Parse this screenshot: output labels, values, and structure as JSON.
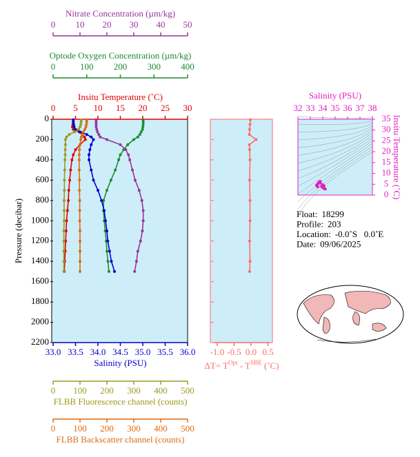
{
  "chart_data": [
    {
      "type": "profile",
      "ylabel": "Pressure (decibar)",
      "ylim": [
        0,
        2200
      ],
      "yticks": [
        0,
        200,
        400,
        600,
        800,
        1000,
        1200,
        1400,
        1600,
        1800,
        2000,
        2200
      ],
      "y": [
        5,
        25,
        50,
        75,
        100,
        125,
        150,
        175,
        200,
        250,
        300,
        350,
        400,
        500,
        600,
        700,
        800,
        900,
        1000,
        1100,
        1200,
        1300,
        1400,
        1500
      ],
      "axes": [
        {
          "label": "Insitu Temperature (˚C)",
          "position": "top",
          "color": "#e00000",
          "xlim": [
            0,
            30
          ],
          "xticks": [
            0,
            5,
            10,
            15,
            20,
            25,
            30
          ],
          "values": [
            4.5,
            4.5,
            4.4,
            4.3,
            4.5,
            5.8,
            6.5,
            7.0,
            7.2,
            6.0,
            5.0,
            4.5,
            4.2,
            3.9,
            3.7,
            3.5,
            3.4,
            3.2,
            3.0,
            2.9,
            2.8,
            2.7,
            2.6,
            2.5
          ]
        },
        {
          "label": "Optode Oxygen Concentration (µm/kg)",
          "position": "top",
          "color": "#1a8c2e",
          "xlim": [
            0,
            400
          ],
          "xticks": [
            0,
            100,
            200,
            300,
            400
          ],
          "values": [
            268,
            268,
            268,
            267,
            266,
            262,
            258,
            252,
            240,
            222,
            210,
            200,
            195,
            185,
            172,
            160,
            150,
            150,
            152,
            155,
            158,
            160,
            163,
            166
          ]
        },
        {
          "label": "Nitrate Concentration (µm/kg)",
          "position": "top",
          "color": "#993399",
          "xlim": [
            0,
            50
          ],
          "xticks": [
            0,
            10,
            20,
            30,
            40,
            50
          ],
          "values": [
            16,
            16,
            16,
            16,
            16.2,
            16.5,
            17,
            17.5,
            20,
            25,
            27,
            28,
            28.5,
            29.5,
            30.5,
            32,
            33,
            33.5,
            33.5,
            33.2,
            32.5,
            31.5,
            31,
            30.3
          ]
        },
        {
          "label": "Salinity (PSU)",
          "position": "bottom",
          "color": "#0000cc",
          "xlim": [
            33,
            36
          ],
          "xticks": [
            {
              "value": 33,
              "label": "33.0"
            },
            33.5,
            {
              "value": 34,
              "label": "34.0"
            },
            34.5,
            {
              "value": 35,
              "label": "35.0"
            },
            35.5,
            {
              "value": 36,
              "label": "36.0"
            }
          ],
          "values": [
            33.45,
            33.45,
            33.46,
            33.47,
            33.5,
            33.6,
            33.75,
            33.85,
            33.9,
            33.85,
            33.82,
            33.8,
            33.8,
            33.85,
            33.9,
            34.0,
            34.08,
            34.14,
            34.17,
            34.2,
            34.22,
            34.26,
            34.3,
            34.37
          ]
        },
        {
          "label": "FLBB Fluorescence channel (counts)",
          "position": "bottom",
          "color": "#9a9a1e",
          "xlim": [
            0,
            500
          ],
          "xticks": [
            0,
            100,
            200,
            300,
            400,
            500
          ],
          "values": [
            105,
            104,
            103,
            100,
            95,
            80,
            60,
            50,
            46,
            46,
            45,
            45,
            44,
            43,
            42,
            42,
            41,
            41,
            41,
            40,
            40,
            40,
            40,
            40
          ]
        },
        {
          "label": "FLBB Backscatter channel (counts)",
          "position": "bottom",
          "color": "#e06a10",
          "xlim": [
            0,
            500
          ],
          "xticks": [
            0,
            100,
            200,
            300,
            400,
            500
          ],
          "values": [
            125,
            125,
            124,
            122,
            118,
            112,
            108,
            105,
            103,
            100,
            98,
            97,
            97,
            97,
            98,
            98,
            99,
            99,
            99,
            100,
            100,
            100,
            100,
            100
          ]
        }
      ]
    },
    {
      "type": "profile",
      "ylim": [
        0,
        2200
      ],
      "yticks": [
        0,
        200,
        400,
        600,
        800,
        1000,
        1200,
        1400,
        1600,
        1800,
        2000,
        2200
      ],
      "y": [
        5,
        50,
        100,
        150,
        200,
        250,
        300,
        400,
        600,
        800,
        1000,
        1200,
        1400,
        1500
      ],
      "axes": [
        {
          "label_parts": [
            "ΔT= T",
            "Opt",
            " - T",
            "SBE",
            " (˚C)"
          ],
          "position": "bottom",
          "color": "#ff6a6a",
          "xlim": [
            -1.1,
            0.55
          ],
          "xticks": [
            {
              "value": -1,
              "label": "-1.0"
            },
            -0.5,
            {
              "value": 0,
              "label": "0.0"
            },
            0.5
          ],
          "values": [
            -0.02,
            -0.03,
            -0.04,
            -0.05,
            0.15,
            -0.05,
            -0.04,
            -0.03,
            -0.04,
            -0.03,
            -0.03,
            -0.04,
            -0.03,
            -0.04
          ]
        }
      ]
    },
    {
      "type": "ts",
      "xlabel": "Salinity (PSU)",
      "ylabel": "Insitu Temperature (˚C)",
      "color": "#e020c0",
      "xlim": [
        32,
        38
      ],
      "xticks": [
        32,
        33,
        34,
        35,
        36,
        37,
        38
      ],
      "ylim": [
        0,
        35
      ],
      "yticks": [
        0,
        5,
        10,
        15,
        20,
        25,
        30,
        35
      ],
      "x": [
        33.5,
        33.6,
        33.7,
        33.8,
        33.9,
        34.0,
        34.1,
        34.2,
        33.8,
        34.0,
        33.6,
        34.1
      ],
      "y": [
        4.5,
        5.2,
        6.0,
        5.5,
        4.0,
        3.5,
        3.0,
        2.8,
        6.3,
        4.8,
        3.8,
        4.2
      ]
    }
  ],
  "info": {
    "rows": [
      [
        "Float:",
        "18299"
      ],
      [
        "Profile:",
        "203"
      ],
      [
        "Location:",
        "-0.0˚S   0.0˚E"
      ],
      [
        "Date:",
        "09/06/2025"
      ]
    ]
  }
}
